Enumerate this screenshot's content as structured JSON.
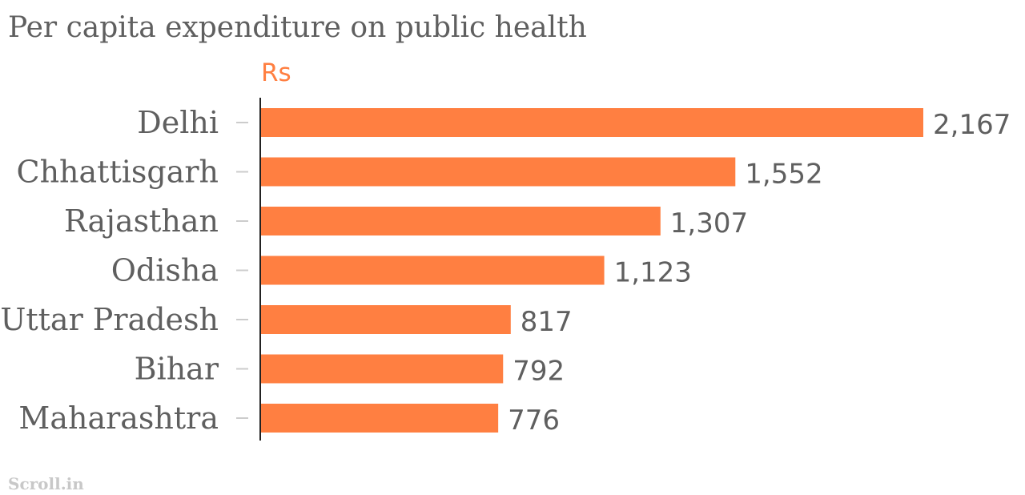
{
  "chart_data": {
    "type": "bar",
    "orientation": "horizontal",
    "title": "Per capita expenditure on public health",
    "unit_label": "Rs",
    "categories": [
      "Delhi",
      "Chhattisgarh",
      "Rajasthan",
      "Odisha",
      "Uttar Pradesh",
      "Bihar",
      "Maharashtra"
    ],
    "values": [
      2167,
      1552,
      1307,
      1123,
      817,
      792,
      776
    ],
    "value_labels": [
      "2,167",
      "1,552",
      "1,307",
      "1,123",
      "817",
      "792",
      "776"
    ],
    "xlim": [
      0,
      2167
    ],
    "grid": false,
    "legend": "none"
  },
  "source_label": "Scroll.in",
  "colors": {
    "bar": "#ff7f41",
    "text": "#5f5f5f",
    "unit": "#ff7f41",
    "axis": "#222222",
    "tick": "#cccccc",
    "source": "#c8c8c8"
  }
}
